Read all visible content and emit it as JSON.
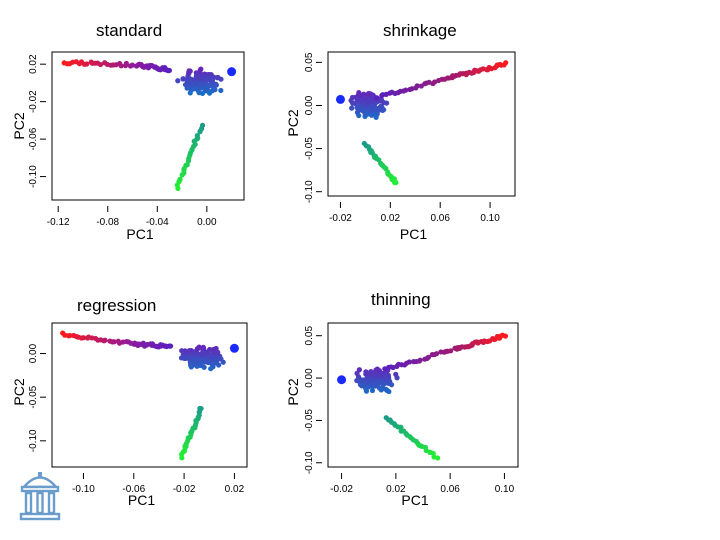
{
  "chart_data": [
    {
      "type": "scatter",
      "title": "standard",
      "xlabel": "PC1",
      "ylabel": "PC2",
      "xlim": [
        -0.125,
        0.03
      ],
      "ylim": [
        -0.125,
        0.033
      ],
      "xticks": [
        -0.12,
        -0.08,
        -0.04,
        0.0
      ],
      "xtick_labels": [
        "-0.12",
        "-0.08",
        "-0.04",
        "0.00"
      ],
      "yticks": [
        0.02,
        -0.02,
        -0.06,
        -0.1
      ],
      "ytick_labels": [
        "0.02",
        "-0.02",
        "-0.06",
        "-0.10"
      ],
      "arms": [
        {
          "from": [
            -0.115,
            0.022
          ],
          "to": [
            -0.055,
            0.019
          ],
          "color_from": "#ff1a1a",
          "color_to": "#8a1aa0"
        },
        {
          "from": [
            -0.055,
            0.019
          ],
          "to": [
            -0.03,
            0.014
          ],
          "color_from": "#8a1aa0",
          "color_to": "#5a20c0"
        },
        {
          "from": [
            -0.004,
            -0.045
          ],
          "to": [
            -0.024,
            -0.112
          ],
          "color_from": "#1a9a8a",
          "color_to": "#22ee33"
        }
      ],
      "cluster": {
        "center": [
          -0.006,
          0.002
        ],
        "spread": [
          0.012,
          0.009
        ],
        "color": "#3a3ac8"
      },
      "highlight": {
        "x": 0.02,
        "y": 0.012,
        "color": "#1a2aff"
      }
    },
    {
      "type": "scatter",
      "title": "shrinkage",
      "xlabel": "PC1",
      "ylabel": "PC2",
      "xlim": [
        -0.03,
        0.12
      ],
      "ylim": [
        -0.105,
        0.062
      ],
      "xticks": [
        -0.02,
        0.02,
        0.06,
        0.1
      ],
      "xtick_labels": [
        "-0.02",
        "0.02",
        "0.06",
        "0.10"
      ],
      "yticks": [
        0.05,
        0.0,
        -0.05,
        -0.1
      ],
      "ytick_labels": [
        "0.05",
        "0.00",
        "-0.05",
        "-0.10"
      ],
      "arms": [
        {
          "from": [
            0.01,
            0.01
          ],
          "to": [
            0.07,
            0.033
          ],
          "color_from": "#5a20c0",
          "color_to": "#a01a70"
        },
        {
          "from": [
            0.07,
            0.033
          ],
          "to": [
            0.113,
            0.048
          ],
          "color_from": "#a01a70",
          "color_to": "#ff1a1a"
        },
        {
          "from": [
            0.0,
            -0.045
          ],
          "to": [
            0.025,
            -0.09
          ],
          "color_from": "#1a9a8a",
          "color_to": "#22ee33"
        }
      ],
      "cluster": {
        "center": [
          0.003,
          0.0
        ],
        "spread": [
          0.01,
          0.011
        ],
        "color": "#3a3ac8"
      },
      "highlight": {
        "x": -0.02,
        "y": 0.007,
        "color": "#1a2aff"
      }
    },
    {
      "type": "scatter",
      "title": "regression",
      "xlabel": "PC1",
      "ylabel": "PC2",
      "xlim": [
        -0.125,
        0.03
      ],
      "ylim": [
        -0.13,
        0.035
      ],
      "xticks": [
        -0.1,
        -0.06,
        -0.02,
        0.02
      ],
      "xtick_labels": [
        "-0.10",
        "-0.06",
        "-0.02",
        "0.02"
      ],
      "yticks": [
        0.0,
        -0.05,
        -0.1
      ],
      "ytick_labels": [
        "0.00",
        "-0.05",
        "-0.10"
      ],
      "arms": [
        {
          "from": [
            -0.117,
            0.022
          ],
          "to": [
            -0.06,
            0.011
          ],
          "color_from": "#ff1a1a",
          "color_to": "#8a1aa0"
        },
        {
          "from": [
            -0.06,
            0.011
          ],
          "to": [
            -0.03,
            0.008
          ],
          "color_from": "#8a1aa0",
          "color_to": "#5a20c0"
        },
        {
          "from": [
            -0.006,
            -0.062
          ],
          "to": [
            -0.022,
            -0.118
          ],
          "color_from": "#1a9a8a",
          "color_to": "#22ee33"
        }
      ],
      "cluster": {
        "center": [
          -0.006,
          -0.005
        ],
        "spread": [
          0.012,
          0.01
        ],
        "color": "#3a3ac8"
      },
      "highlight": {
        "x": 0.02,
        "y": 0.006,
        "color": "#1a2aff"
      }
    },
    {
      "type": "scatter",
      "title": "thinning",
      "xlabel": "PC1",
      "ylabel": "PC2",
      "xlim": [
        -0.03,
        0.11
      ],
      "ylim": [
        -0.105,
        0.065
      ],
      "xticks": [
        -0.02,
        0.02,
        0.06,
        0.1
      ],
      "xtick_labels": [
        "-0.02",
        "0.02",
        "0.06",
        "0.10"
      ],
      "yticks": [
        0.05,
        0.0,
        -0.05,
        -0.1
      ],
      "ytick_labels": [
        "0.05",
        "0.00",
        "-0.05",
        "-0.10"
      ],
      "arms": [
        {
          "from": [
            0.012,
            0.01
          ],
          "to": [
            0.065,
            0.035
          ],
          "color_from": "#5a20c0",
          "color_to": "#a01a70"
        },
        {
          "from": [
            0.065,
            0.035
          ],
          "to": [
            0.1,
            0.05
          ],
          "color_from": "#a01a70",
          "color_to": "#ff1a1a"
        },
        {
          "from": [
            0.013,
            -0.047
          ],
          "to": [
            0.05,
            -0.094
          ],
          "color_from": "#1a9a8a",
          "color_to": "#22ee33"
        }
      ],
      "cluster": {
        "center": [
          0.005,
          -0.002
        ],
        "spread": [
          0.011,
          0.011
        ],
        "color": "#3a3ac8"
      },
      "highlight": {
        "x": -0.02,
        "y": -0.002,
        "color": "#1a2aff"
      }
    }
  ]
}
